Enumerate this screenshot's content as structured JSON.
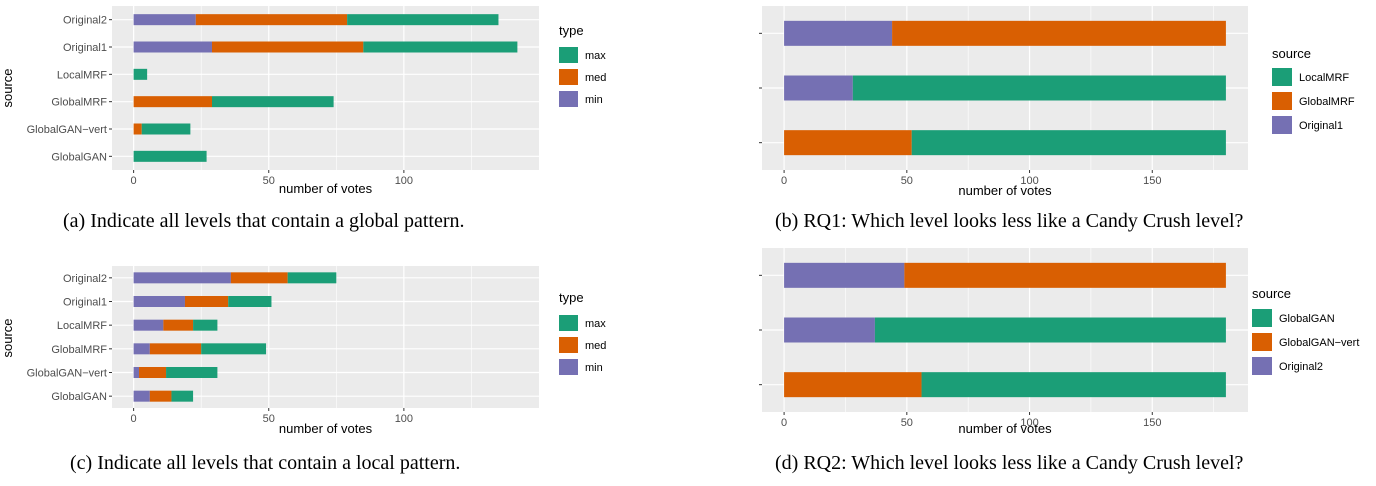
{
  "colors": {
    "max": "#1b9e77",
    "med": "#d95f02",
    "min": "#7570b3",
    "panel": "#ebebeb",
    "grid": "#ffffff"
  },
  "chart_data": [
    {
      "id": "a",
      "type": "bar",
      "orientation": "horizontal",
      "stacked": true,
      "xlabel": "number of votes",
      "ylabel": "source",
      "legend_title": "type",
      "legend_position": "right",
      "xlim": [
        -8,
        150
      ],
      "xticks": [
        0,
        50,
        100
      ],
      "categories": [
        "GlobalGAN",
        "GlobalGAN−vert",
        "GlobalMRF",
        "LocalMRF",
        "Original1",
        "Original2"
      ],
      "series": [
        {
          "name": "min",
          "color": "#7570b3",
          "values": [
            0,
            0,
            0,
            0,
            29,
            23
          ]
        },
        {
          "name": "med",
          "color": "#d95f02",
          "values": [
            0,
            3,
            29,
            0,
            56,
            56
          ]
        },
        {
          "name": "max",
          "color": "#1b9e77",
          "values": [
            27,
            18,
            45,
            5,
            57,
            56
          ]
        }
      ],
      "legend": [
        "max",
        "med",
        "min"
      ],
      "caption": "(a) Indicate all levels that contain a global pattern."
    },
    {
      "id": "b",
      "type": "bar",
      "orientation": "horizontal",
      "stacked": true,
      "xlabel": "number of votes",
      "ylabel": "",
      "legend_title": "source",
      "legend_position": "right",
      "xlim": [
        -9,
        189
      ],
      "xticks": [
        0,
        50,
        100,
        150
      ],
      "categories": [
        "row1",
        "row2",
        "row3"
      ],
      "series": [
        {
          "name": "Original1",
          "color": "#7570b3",
          "values": [
            0,
            28,
            44
          ]
        },
        {
          "name": "GlobalMRF",
          "color": "#d95f02",
          "values": [
            52,
            0,
            136
          ]
        },
        {
          "name": "LocalMRF",
          "color": "#1b9e77",
          "values": [
            128,
            152,
            0
          ]
        }
      ],
      "legend": [
        "LocalMRF",
        "GlobalMRF",
        "Original1"
      ],
      "caption": "(b) RQ1: Which level looks less like a Candy Crush level?"
    },
    {
      "id": "c",
      "type": "bar",
      "orientation": "horizontal",
      "stacked": true,
      "xlabel": "number of votes",
      "ylabel": "source",
      "legend_title": "type",
      "legend_position": "right",
      "xlim": [
        -8,
        150
      ],
      "xticks": [
        0,
        50,
        100
      ],
      "categories": [
        "GlobalGAN",
        "GlobalGAN−vert",
        "GlobalMRF",
        "LocalMRF",
        "Original1",
        "Original2"
      ],
      "series": [
        {
          "name": "min",
          "color": "#7570b3",
          "values": [
            6,
            2,
            6,
            11,
            19,
            36
          ]
        },
        {
          "name": "med",
          "color": "#d95f02",
          "values": [
            8,
            10,
            19,
            11,
            16,
            21
          ]
        },
        {
          "name": "max",
          "color": "#1b9e77",
          "values": [
            8,
            19,
            24,
            9,
            16,
            18
          ]
        }
      ],
      "legend": [
        "max",
        "med",
        "min"
      ],
      "caption": "(c) Indicate all levels that contain a local pattern."
    },
    {
      "id": "d",
      "type": "bar",
      "orientation": "horizontal",
      "stacked": true,
      "xlabel": "number of votes",
      "ylabel": "",
      "legend_title": "source",
      "legend_position": "right",
      "xlim": [
        -9,
        189
      ],
      "xticks": [
        0,
        50,
        100,
        150
      ],
      "categories": [
        "row1",
        "row2",
        "row3"
      ],
      "series": [
        {
          "name": "Original2",
          "color": "#7570b3",
          "values": [
            0,
            37,
            49
          ]
        },
        {
          "name": "GlobalGAN−vert",
          "color": "#d95f02",
          "values": [
            56,
            0,
            131
          ]
        },
        {
          "name": "GlobalGAN",
          "color": "#1b9e77",
          "values": [
            124,
            143,
            0
          ]
        }
      ],
      "legend": [
        "GlobalGAN",
        "GlobalGAN−vert",
        "Original2"
      ],
      "caption": "(d) RQ2: Which level looks less like a Candy Crush level?"
    }
  ]
}
